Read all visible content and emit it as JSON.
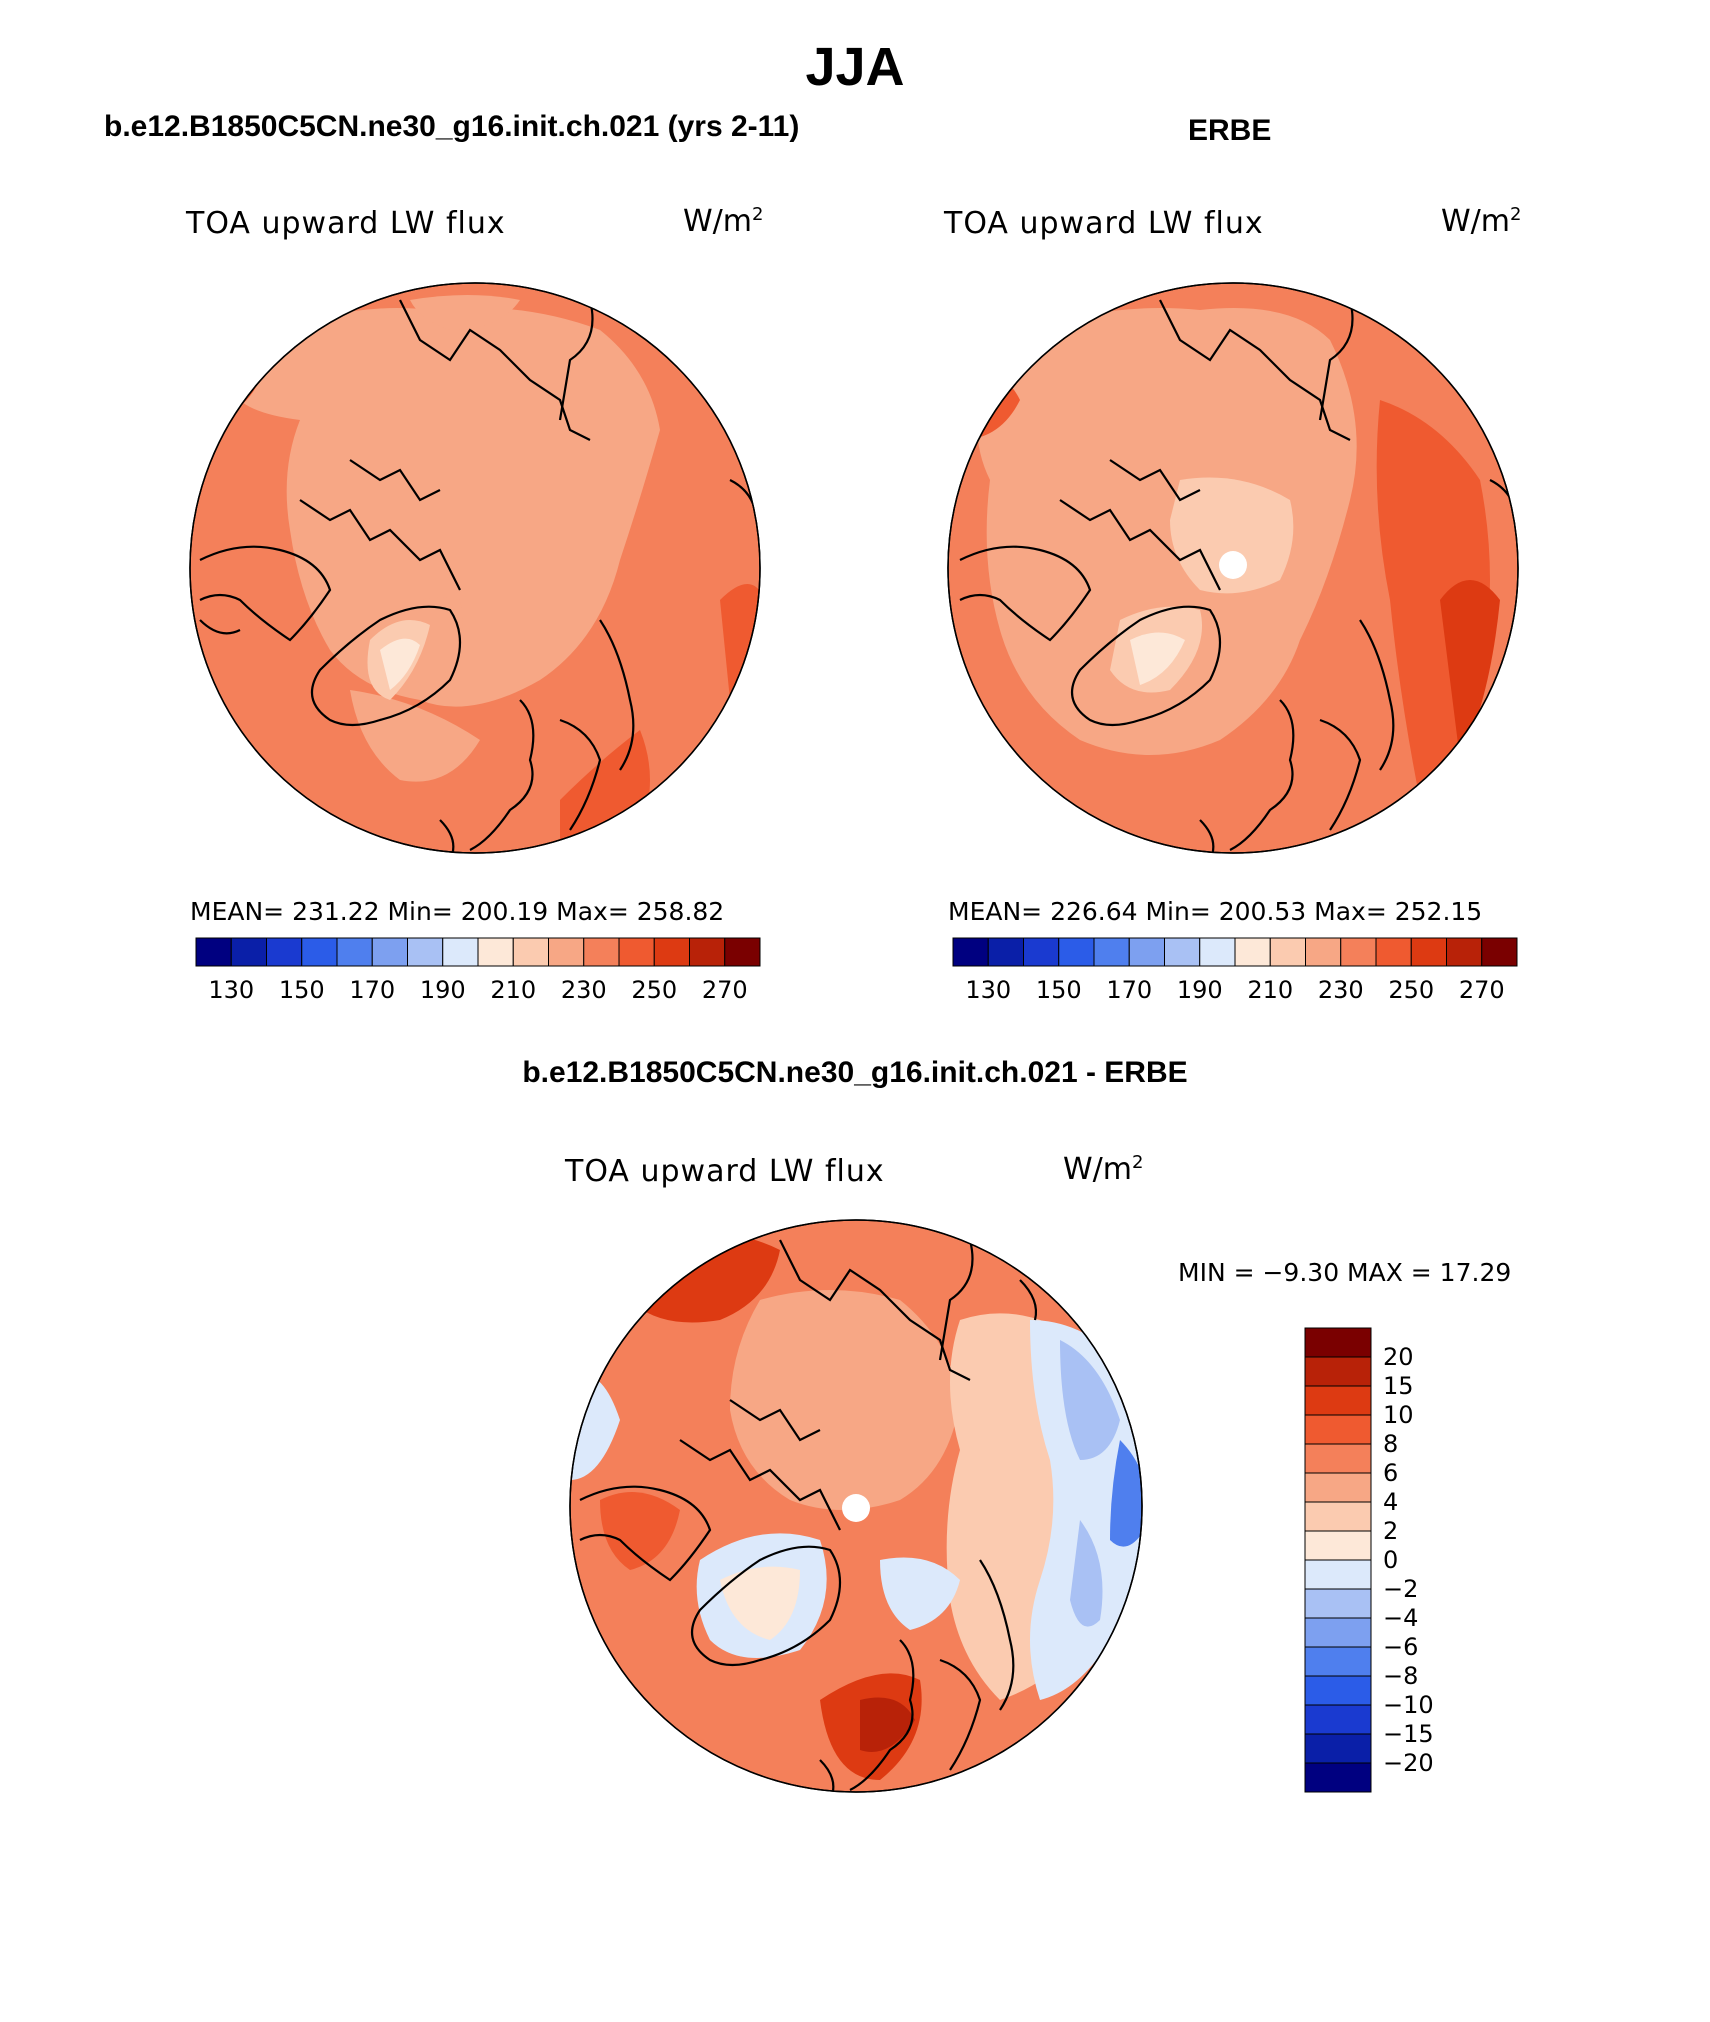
{
  "title": "JJA",
  "panels": [
    {
      "title": "b.e12.B1850C5CN.ne30_g16.init.ch.021 (yrs 2-11)",
      "variable": "TOA upward LW flux",
      "units_base": "W/m",
      "units_sup": "2",
      "stats": "MEAN= 231.22   Min= 200.19   Max= 258.82",
      "colorbar_labels": [
        "130",
        "150",
        "170",
        "190",
        "210",
        "230",
        "250",
        "270"
      ]
    },
    {
      "title": "ERBE",
      "variable": "TOA upward LW flux",
      "units_base": "W/m",
      "units_sup": "2",
      "stats": "MEAN= 226.64   Min= 200.53   Max= 252.15",
      "colorbar_labels": [
        "130",
        "150",
        "170",
        "190",
        "210",
        "230",
        "250",
        "270"
      ]
    }
  ],
  "difference": {
    "title": "b.e12.B1850C5CN.ne30_g16.init.ch.021 - ERBE",
    "variable": "TOA upward LW flux",
    "units_base": "W/m",
    "units_sup": "2",
    "stats": "MIN =   −9.30 MAX =   17.29",
    "colorbar_labels": [
      "20",
      "15",
      "10",
      "8",
      "6",
      "4",
      "2",
      "0",
      "−2",
      "−4",
      "−6",
      "−8",
      "−10",
      "−15",
      "−20"
    ]
  },
  "colors": {
    "abs_colorbar": [
      "#000080",
      "#0a1fa8",
      "#1a3ad0",
      "#2b5ce8",
      "#4f7fee",
      "#7da0f0",
      "#a9c1f4",
      "#dce9fb",
      "#fde8d8",
      "#fbcbb0",
      "#f7a785",
      "#f4805a",
      "#ef5a30",
      "#dd3a12",
      "#b82208",
      "#7a0000"
    ],
    "diff_colorbar": [
      "#7a0000",
      "#b82208",
      "#dd3a12",
      "#ef5a30",
      "#f4805a",
      "#f7a785",
      "#fbcbb0",
      "#fde8d8",
      "#dce9fb",
      "#a9c1f4",
      "#7da0f0",
      "#4f7fee",
      "#2b5ce8",
      "#1a3ad0",
      "#0a1fa8",
      "#000080"
    ]
  }
}
